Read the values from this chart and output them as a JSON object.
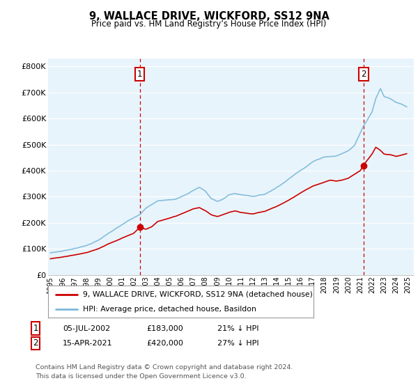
{
  "title": "9, WALLACE DRIVE, WICKFORD, SS12 9NA",
  "subtitle": "Price paid vs. HM Land Registry’s House Price Index (HPI)",
  "ylabel_ticks": [
    "£0",
    "£100K",
    "£200K",
    "£300K",
    "£400K",
    "£500K",
    "£600K",
    "£700K",
    "£800K"
  ],
  "ytick_values": [
    0,
    100000,
    200000,
    300000,
    400000,
    500000,
    600000,
    700000,
    800000
  ],
  "ylim": [
    0,
    830000
  ],
  "sale1_date": 2002.5,
  "sale1_price": 183000,
  "sale2_date": 2021.28,
  "sale2_price": 420000,
  "legend_line1": "9, WALLACE DRIVE, WICKFORD, SS12 9NA (detached house)",
  "legend_line2": "HPI: Average price, detached house, Basildon",
  "annotation1_date": "05-JUL-2002",
  "annotation1_price": "£183,000",
  "annotation1_pct": "21% ↓ HPI",
  "annotation2_date": "15-APR-2021",
  "annotation2_price": "£420,000",
  "annotation2_pct": "27% ↓ HPI",
  "footer1": "Contains HM Land Registry data © Crown copyright and database right 2024.",
  "footer2": "This data is licensed under the Open Government Licence v3.0.",
  "hpi_color": "#7ab8d9",
  "sale_color": "#cc0000",
  "vline_color": "#cc0000",
  "background_color": "#ffffff",
  "chart_bg_color": "#e8f4fb",
  "grid_color": "#ffffff"
}
